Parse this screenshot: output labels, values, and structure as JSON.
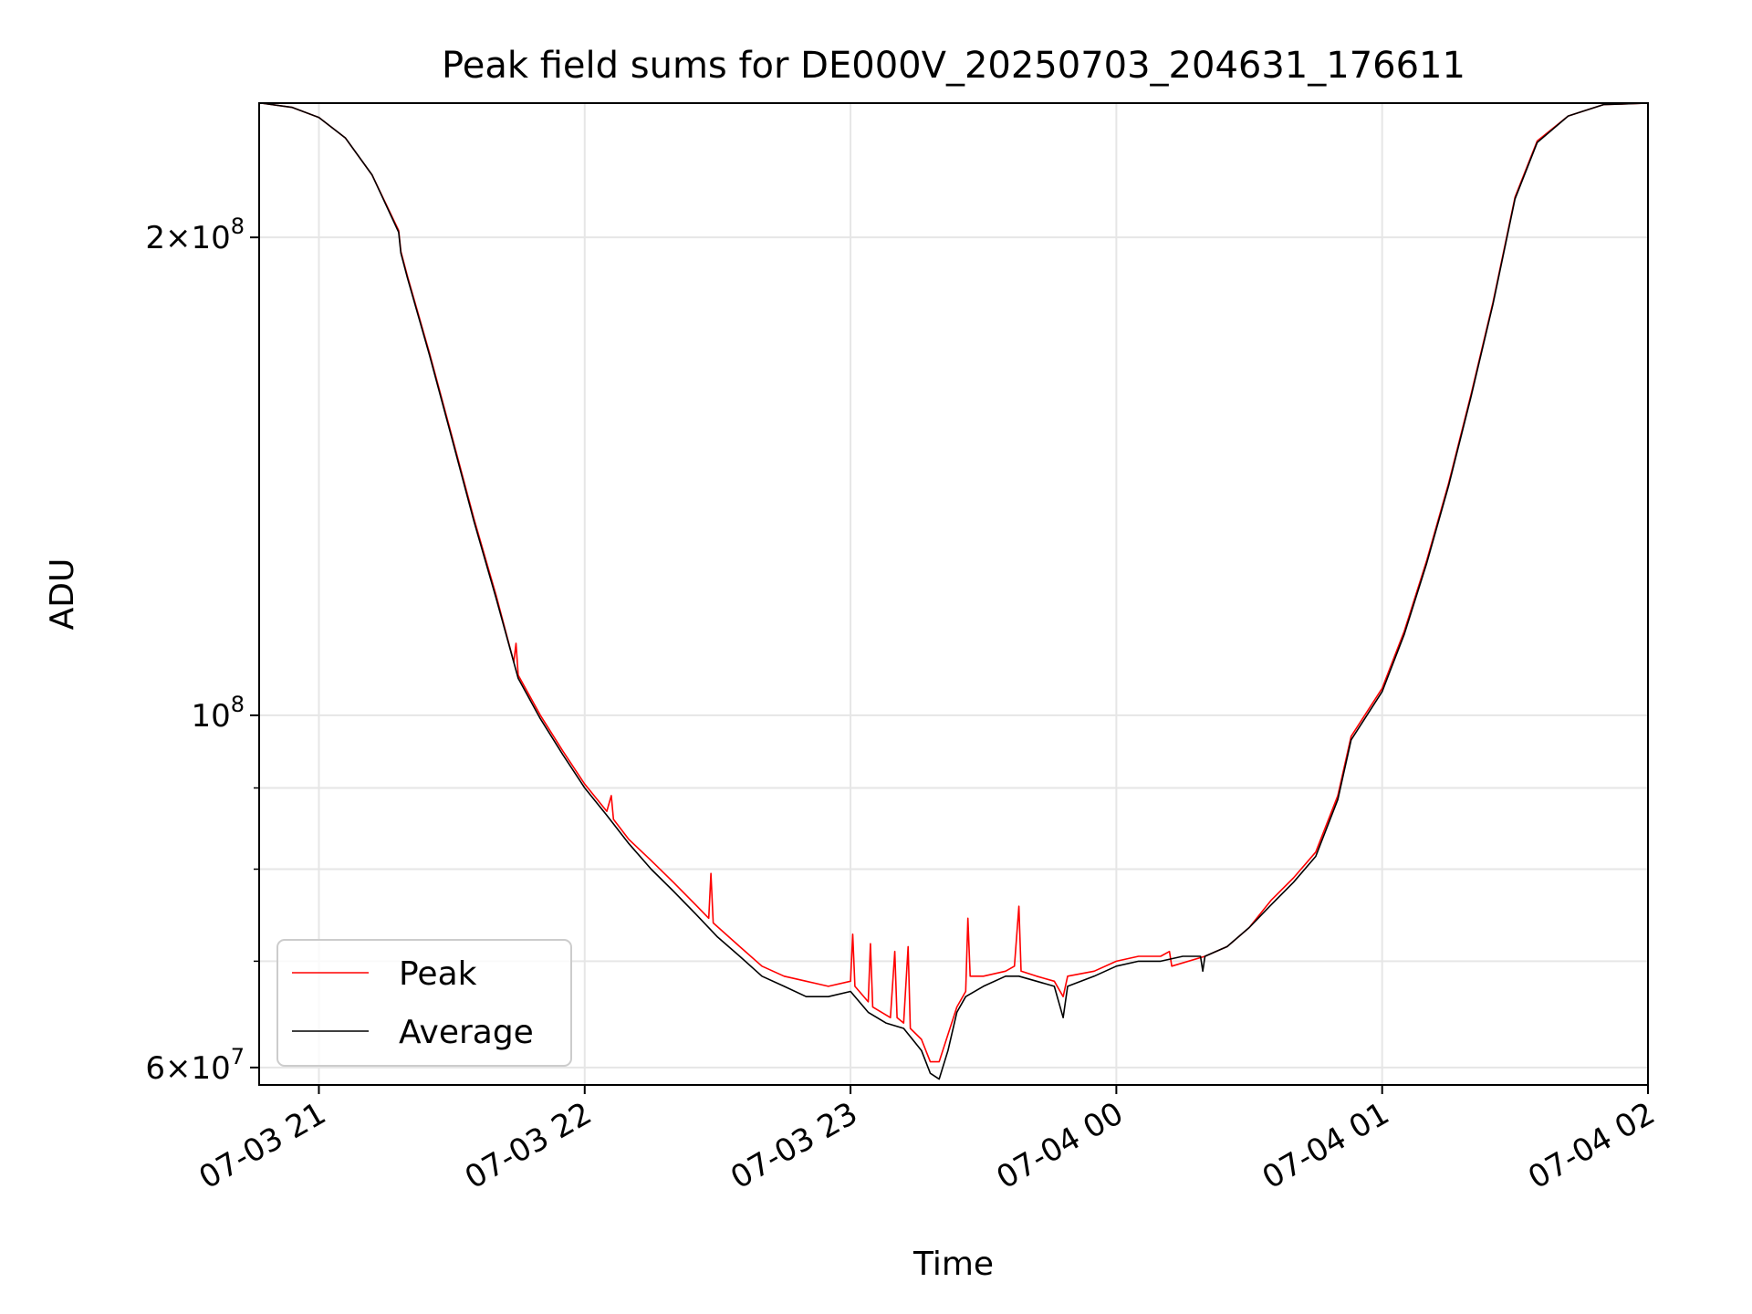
{
  "chart_data": {
    "type": "line",
    "title": "Peak field sums for DE000V_20250703_204631_176611",
    "xlabel": "Time",
    "ylabel": "ADU",
    "yscale": "log",
    "ylim": [
      58500000,
      243000000
    ],
    "xlim": [
      "2025-07-03 20:46:31",
      "2025-07-04 02:00:00"
    ],
    "grid": true,
    "legend_position": "lower-left",
    "xticks": [
      {
        "t": "2025-07-03 21:00",
        "label": "07-03 21"
      },
      {
        "t": "2025-07-03 22:00",
        "label": "07-03 22"
      },
      {
        "t": "2025-07-03 23:00",
        "label": "07-03 23"
      },
      {
        "t": "2025-07-04 00:00",
        "label": "07-04 00"
      },
      {
        "t": "2025-07-04 01:00",
        "label": "07-04 01"
      },
      {
        "t": "2025-07-04 02:00",
        "label": "07-04 02"
      }
    ],
    "yticks_major": [
      {
        "v": 60000000,
        "base": "6",
        "exp": "7"
      },
      {
        "v": 100000000,
        "base": "",
        "exp": "8"
      },
      {
        "v": 200000000,
        "base": "2",
        "exp": "8"
      }
    ],
    "yticks_minor": [
      70000000,
      80000000,
      90000000
    ],
    "series": [
      {
        "name": "Peak",
        "color": "#ff0000",
        "points": [
          [
            "2025-07-03 20:47",
            243000000
          ],
          [
            "2025-07-03 20:54",
            241500000
          ],
          [
            "2025-07-03 21:00",
            238000000
          ],
          [
            "2025-07-03 21:06",
            231000000
          ],
          [
            "2025-07-03 21:12",
            219000000
          ],
          [
            "2025-07-03 21:18",
            202000000
          ],
          [
            "2025-07-03 21:18:30",
            196000000
          ],
          [
            "2025-07-03 21:20",
            189000000
          ],
          [
            "2025-07-03 21:25",
            169000000
          ],
          [
            "2025-07-03 21:30",
            150000000
          ],
          [
            "2025-07-03 21:35",
            133000000
          ],
          [
            "2025-07-03 21:40",
            119000000
          ],
          [
            "2025-07-03 21:44",
            108000000
          ],
          [
            "2025-07-03 21:44:30",
            111000000
          ],
          [
            "2025-07-03 21:45",
            106000000
          ],
          [
            "2025-07-03 21:50",
            100000000
          ],
          [
            "2025-07-03 21:55",
            95000000
          ],
          [
            "2025-07-03 22:00",
            90500000
          ],
          [
            "2025-07-03 22:05",
            87000000
          ],
          [
            "2025-07-03 22:06",
            89000000
          ],
          [
            "2025-07-03 22:06:30",
            86000000
          ],
          [
            "2025-07-03 22:10",
            83500000
          ],
          [
            "2025-07-03 22:15",
            81000000
          ],
          [
            "2025-07-03 22:20",
            78500000
          ],
          [
            "2025-07-03 22:25",
            76000000
          ],
          [
            "2025-07-03 22:28",
            74500000
          ],
          [
            "2025-07-03 22:28:30",
            79500000
          ],
          [
            "2025-07-03 22:29",
            74000000
          ],
          [
            "2025-07-03 22:35",
            71500000
          ],
          [
            "2025-07-03 22:40",
            69500000
          ],
          [
            "2025-07-03 22:45",
            68500000
          ],
          [
            "2025-07-03 22:50",
            68000000
          ],
          [
            "2025-07-03 22:55",
            67500000
          ],
          [
            "2025-07-03 23:00",
            68000000
          ],
          [
            "2025-07-03 23:00:30",
            72800000
          ],
          [
            "2025-07-03 23:01",
            67500000
          ],
          [
            "2025-07-03 23:04",
            66000000
          ],
          [
            "2025-07-03 23:04:30",
            71800000
          ],
          [
            "2025-07-03 23:05",
            65500000
          ],
          [
            "2025-07-03 23:09",
            64500000
          ],
          [
            "2025-07-03 23:10",
            71000000
          ],
          [
            "2025-07-03 23:10:30",
            64500000
          ],
          [
            "2025-07-03 23:12",
            64000000
          ],
          [
            "2025-07-03 23:13",
            71500000
          ],
          [
            "2025-07-03 23:13:30",
            63500000
          ],
          [
            "2025-07-03 23:16",
            62500000
          ],
          [
            "2025-07-03 23:18",
            60500000
          ],
          [
            "2025-07-03 23:20",
            60500000
          ],
          [
            "2025-07-03 23:24",
            65500000
          ],
          [
            "2025-07-03 23:26",
            67000000
          ],
          [
            "2025-07-03 23:26:30",
            74500000
          ],
          [
            "2025-07-03 23:27",
            68500000
          ],
          [
            "2025-07-03 23:30",
            68500000
          ],
          [
            "2025-07-03 23:35",
            69000000
          ],
          [
            "2025-07-03 23:37",
            69500000
          ],
          [
            "2025-07-03 23:38",
            75800000
          ],
          [
            "2025-07-03 23:38:30",
            69000000
          ],
          [
            "2025-07-03 23:42",
            68500000
          ],
          [
            "2025-07-03 23:46",
            68000000
          ],
          [
            "2025-07-03 23:48",
            66500000
          ],
          [
            "2025-07-03 23:49",
            68500000
          ],
          [
            "2025-07-03 23:55",
            69000000
          ],
          [
            "2025-07-04 00:00",
            70000000
          ],
          [
            "2025-07-04 00:05",
            70500000
          ],
          [
            "2025-07-04 00:10",
            70500000
          ],
          [
            "2025-07-04 00:12",
            71000000
          ],
          [
            "2025-07-04 00:12:30",
            69500000
          ],
          [
            "2025-07-04 00:20",
            70500000
          ],
          [
            "2025-07-04 00:25",
            71500000
          ],
          [
            "2025-07-04 00:30",
            73500000
          ],
          [
            "2025-07-04 00:35",
            76500000
          ],
          [
            "2025-07-04 00:40",
            79000000
          ],
          [
            "2025-07-04 00:45",
            82000000
          ],
          [
            "2025-07-04 00:50",
            89000000
          ],
          [
            "2025-07-04 00:53",
            97000000
          ],
          [
            "2025-07-04 01:00",
            104000000
          ],
          [
            "2025-07-04 01:05",
            113000000
          ],
          [
            "2025-07-04 01:10",
            125000000
          ],
          [
            "2025-07-04 01:15",
            140000000
          ],
          [
            "2025-07-04 01:20",
            159000000
          ],
          [
            "2025-07-04 01:25",
            182000000
          ],
          [
            "2025-07-04 01:30",
            212000000
          ],
          [
            "2025-07-04 01:35",
            230000000
          ],
          [
            "2025-07-04 01:42",
            238500000
          ],
          [
            "2025-07-04 01:50",
            242500000
          ],
          [
            "2025-07-04 02:00",
            243000000
          ]
        ]
      },
      {
        "name": "Average",
        "color": "#000000",
        "points": [
          [
            "2025-07-03 20:47",
            243000000
          ],
          [
            "2025-07-03 20:54",
            241500000
          ],
          [
            "2025-07-03 21:00",
            238000000
          ],
          [
            "2025-07-03 21:06",
            231000000
          ],
          [
            "2025-07-03 21:12",
            219000000
          ],
          [
            "2025-07-03 21:18",
            201500000
          ],
          [
            "2025-07-03 21:18:30",
            195500000
          ],
          [
            "2025-07-03 21:20",
            188500000
          ],
          [
            "2025-07-03 21:25",
            168500000
          ],
          [
            "2025-07-03 21:30",
            149500000
          ],
          [
            "2025-07-03 21:35",
            132500000
          ],
          [
            "2025-07-03 21:40",
            118500000
          ],
          [
            "2025-07-03 21:45",
            105500000
          ],
          [
            "2025-07-03 21:50",
            99500000
          ],
          [
            "2025-07-03 21:55",
            94500000
          ],
          [
            "2025-07-03 22:00",
            90000000
          ],
          [
            "2025-07-03 22:05",
            86500000
          ],
          [
            "2025-07-03 22:10",
            83000000
          ],
          [
            "2025-07-03 22:15",
            80000000
          ],
          [
            "2025-07-03 22:20",
            77500000
          ],
          [
            "2025-07-03 22:25",
            75000000
          ],
          [
            "2025-07-03 22:30",
            72500000
          ],
          [
            "2025-07-03 22:35",
            70500000
          ],
          [
            "2025-07-03 22:40",
            68500000
          ],
          [
            "2025-07-03 22:45",
            67500000
          ],
          [
            "2025-07-03 22:50",
            66500000
          ],
          [
            "2025-07-03 22:55",
            66500000
          ],
          [
            "2025-07-03 23:00",
            67000000
          ],
          [
            "2025-07-03 23:04",
            65000000
          ],
          [
            "2025-07-03 23:08",
            64000000
          ],
          [
            "2025-07-03 23:12",
            63500000
          ],
          [
            "2025-07-03 23:16",
            61500000
          ],
          [
            "2025-07-03 23:18",
            59500000
          ],
          [
            "2025-07-03 23:20",
            59000000
          ],
          [
            "2025-07-03 23:22",
            61500000
          ],
          [
            "2025-07-03 23:24",
            65000000
          ],
          [
            "2025-07-03 23:26",
            66500000
          ],
          [
            "2025-07-03 23:30",
            67500000
          ],
          [
            "2025-07-03 23:35",
            68500000
          ],
          [
            "2025-07-03 23:38",
            68500000
          ],
          [
            "2025-07-03 23:42",
            68000000
          ],
          [
            "2025-07-03 23:46",
            67500000
          ],
          [
            "2025-07-03 23:48",
            64500000
          ],
          [
            "2025-07-03 23:49",
            67500000
          ],
          [
            "2025-07-03 23:55",
            68500000
          ],
          [
            "2025-07-04 00:00",
            69500000
          ],
          [
            "2025-07-04 00:05",
            70000000
          ],
          [
            "2025-07-04 00:10",
            70000000
          ],
          [
            "2025-07-04 00:15",
            70500000
          ],
          [
            "2025-07-04 00:19",
            70500000
          ],
          [
            "2025-07-04 00:19:30",
            69000000
          ],
          [
            "2025-07-04 00:20",
            70500000
          ],
          [
            "2025-07-04 00:25",
            71500000
          ],
          [
            "2025-07-04 00:30",
            73500000
          ],
          [
            "2025-07-04 00:35",
            76000000
          ],
          [
            "2025-07-04 00:40",
            78500000
          ],
          [
            "2025-07-04 00:45",
            81500000
          ],
          [
            "2025-07-04 00:50",
            88500000
          ],
          [
            "2025-07-04 00:53",
            96500000
          ],
          [
            "2025-07-04 01:00",
            103500000
          ],
          [
            "2025-07-04 01:05",
            112500000
          ],
          [
            "2025-07-04 01:10",
            124500000
          ],
          [
            "2025-07-04 01:15",
            139500000
          ],
          [
            "2025-07-04 01:20",
            158500000
          ],
          [
            "2025-07-04 01:25",
            181500000
          ],
          [
            "2025-07-04 01:30",
            211500000
          ],
          [
            "2025-07-04 01:35",
            229500000
          ],
          [
            "2025-07-04 01:42",
            238500000
          ],
          [
            "2025-07-04 01:50",
            242500000
          ],
          [
            "2025-07-04 02:00",
            243000000
          ]
        ]
      }
    ]
  }
}
